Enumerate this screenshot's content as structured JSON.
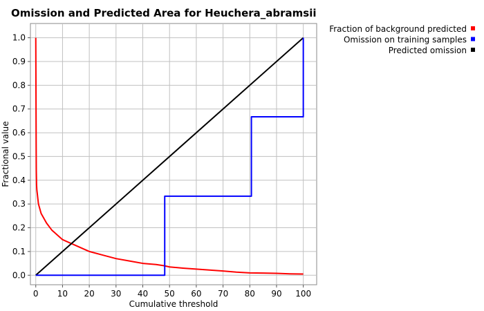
{
  "chart_data": {
    "type": "line",
    "title": "Omission and Predicted Area for Heuchera_abramsii",
    "xlabel": "Cumulative threshold",
    "ylabel": "Fractional value",
    "xlim": [
      -2,
      105
    ],
    "ylim": [
      -0.04,
      1.06
    ],
    "xticks": [
      0,
      10,
      20,
      30,
      40,
      50,
      60,
      70,
      80,
      90,
      100
    ],
    "yticks": [
      0.0,
      0.1,
      0.2,
      0.3,
      0.4,
      0.5,
      0.6,
      0.7,
      0.8,
      0.9,
      1.0
    ],
    "xtick_labels": [
      "0",
      "10",
      "20",
      "30",
      "40",
      "50",
      "60",
      "70",
      "80",
      "90",
      "100"
    ],
    "ytick_labels": [
      "0.0",
      "0.1",
      "0.2",
      "0.3",
      "0.4",
      "0.5",
      "0.6",
      "0.7",
      "0.8",
      "0.9",
      "1.0"
    ],
    "grid": true,
    "legend_position": "top-right-outside",
    "series": [
      {
        "name": "Fraction of background predicted",
        "color": "#ff0000",
        "x": [
          0,
          0.05,
          0.1,
          0.15,
          0.2,
          0.3,
          0.4,
          0.6,
          0.8,
          1,
          1.5,
          2,
          3,
          4,
          5,
          6,
          7,
          8,
          10,
          12,
          15,
          20,
          25,
          30,
          35,
          40,
          45,
          48,
          50,
          55,
          60,
          65,
          70,
          75,
          80,
          85,
          90,
          95,
          100
        ],
        "y": [
          1.0,
          0.85,
          0.7,
          0.55,
          0.44,
          0.38,
          0.36,
          0.34,
          0.32,
          0.3,
          0.28,
          0.26,
          0.24,
          0.22,
          0.205,
          0.19,
          0.18,
          0.17,
          0.15,
          0.14,
          0.125,
          0.1,
          0.085,
          0.07,
          0.06,
          0.05,
          0.045,
          0.04,
          0.035,
          0.03,
          0.026,
          0.022,
          0.018,
          0.013,
          0.01,
          0.009,
          0.008,
          0.006,
          0.005
        ]
      },
      {
        "name": "Omission on training samples",
        "color": "#0000ff",
        "x": [
          0,
          48.2,
          48.2,
          80.6,
          80.6,
          100,
          100
        ],
        "y": [
          0,
          0,
          0.333,
          0.333,
          0.667,
          0.667,
          1.0
        ]
      },
      {
        "name": "Predicted omission",
        "color": "#000000",
        "x": [
          0,
          100
        ],
        "y": [
          0,
          1.0
        ]
      }
    ]
  }
}
